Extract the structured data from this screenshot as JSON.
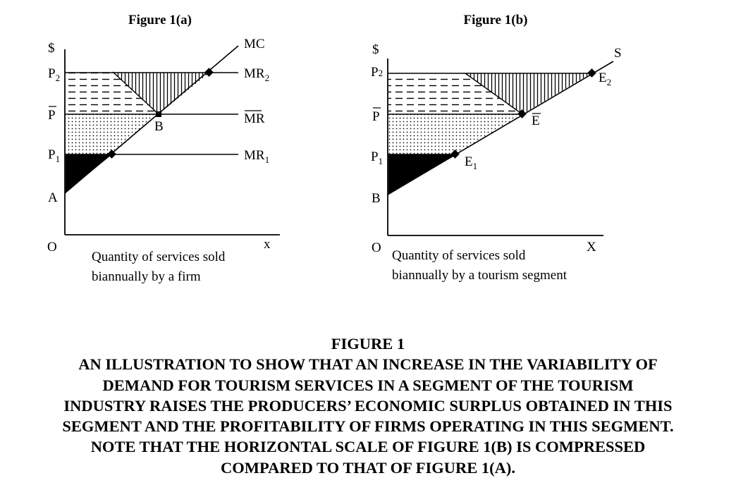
{
  "fig_a": {
    "title": "Figure 1(a)",
    "y_axis_label": "$",
    "origin_label": "O",
    "x_axis_label": "x",
    "p2_label": "P",
    "p2_sub": "2",
    "pbar_label": "P",
    "p1_label": "P",
    "p1_sub": "1",
    "a_label": "A",
    "b_label": "B",
    "mc_label": "MC",
    "mr2_label": "MR",
    "mr2_sub": "2",
    "mrbar_label": "MR",
    "mr1_label": "MR",
    "mr1_sub": "1",
    "desc_line1": "Quantity of services sold",
    "desc_line2": "biannually by a firm"
  },
  "fig_b": {
    "title": "Figure 1(b)",
    "y_axis_label": "$",
    "origin_label": "O",
    "x_axis_label": "X",
    "p2_label": "P",
    "p2_sub": "2",
    "pbar_label": "P",
    "p1_label": "P",
    "p1_sub": "1",
    "b_label": "B",
    "s_label": "S",
    "e2_label": "E",
    "e2_sub": "2",
    "ebar_label": "E",
    "e1_label": "E",
    "e1_sub": "1",
    "desc_line1": "Quantity of services sold",
    "desc_line2": "biannually by a tourism segment"
  },
  "caption": {
    "line1": "FIGURE 1",
    "line2": "AN ILLUSTRATION TO SHOW THAT AN INCREASE IN THE VARIABILITY OF",
    "line3": "DEMAND FOR TOURISM SERVICES IN A SEGMENT OF THE TOURISM",
    "line4": "INDUSTRY RAISES THE PRODUCERS’ ECONOMIC SURPLUS OBTAINED IN THIS",
    "line5": "SEGMENT AND THE PROFITABILITY OF FIRMS OPERATING IN THIS SEGMENT.",
    "line6": "NOTE THAT THE HORIZONTAL SCALE OF FIGURE 1(B) IS COMPRESSED",
    "line7": "COMPARED TO THAT OF FIGURE 1(A)."
  }
}
